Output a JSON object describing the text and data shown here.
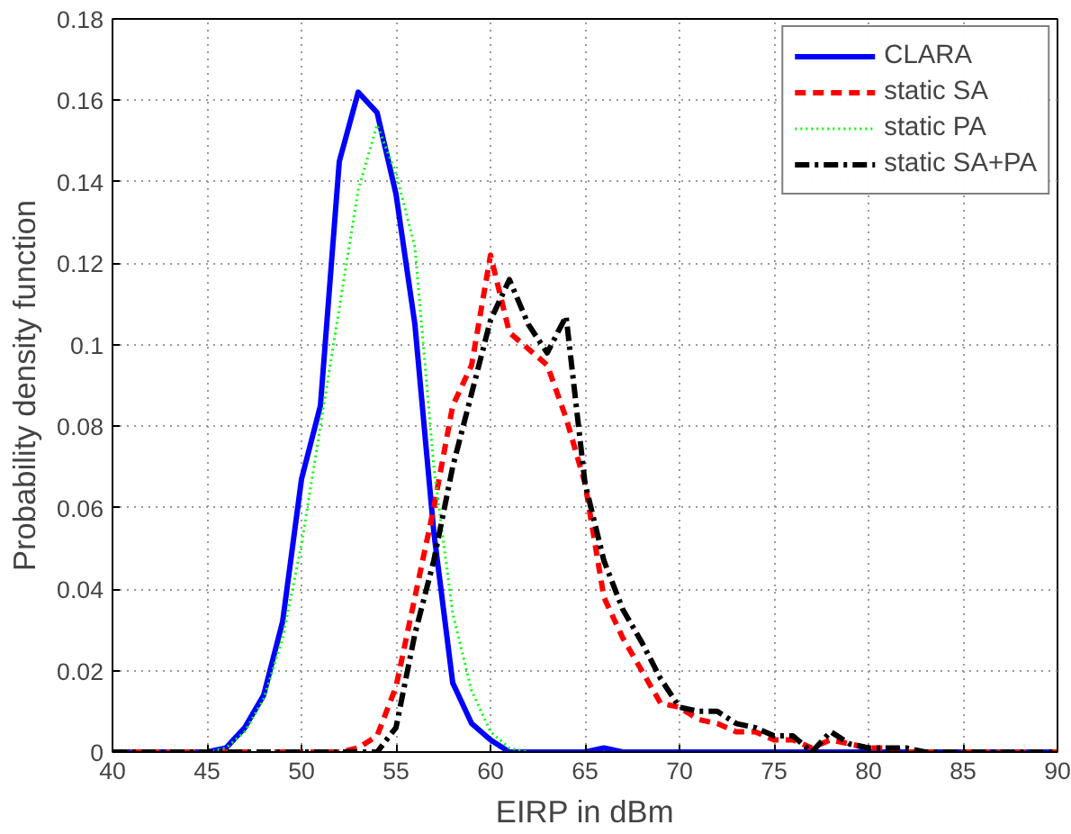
{
  "chart_data": {
    "type": "line",
    "xlabel": "EIRP in dBm",
    "ylabel": "Probability density function",
    "x": [
      40,
      41,
      42,
      43,
      44,
      45,
      46,
      47,
      48,
      49,
      50,
      51,
      52,
      53,
      54,
      55,
      56,
      57,
      58,
      59,
      60,
      61,
      62,
      63,
      64,
      65,
      66,
      67,
      68,
      69,
      70,
      71,
      72,
      73,
      74,
      75,
      76,
      77,
      78,
      79,
      80,
      81,
      82,
      83,
      84,
      85,
      86,
      87,
      88,
      89,
      90
    ],
    "series": [
      {
        "name": "CLARA",
        "color": "#0000ff",
        "line_style": "solid",
        "values": [
          0,
          0,
          0,
          0,
          0,
          0,
          0.001,
          0.006,
          0.014,
          0.032,
          0.067,
          0.085,
          0.145,
          0.162,
          0.157,
          0.137,
          0.105,
          0.054,
          0.017,
          0.007,
          0.003,
          0,
          0,
          0,
          0,
          0,
          0.001,
          0,
          0,
          0,
          0,
          0,
          0,
          0,
          0,
          0,
          0,
          0,
          0,
          0,
          0,
          0,
          0,
          0,
          0,
          0,
          0,
          0,
          0,
          0,
          0
        ]
      },
      {
        "name": "static SA",
        "color": "#ff0000",
        "line_style": "dashed",
        "values": [
          0,
          0,
          0,
          0,
          0,
          0,
          0,
          0,
          0,
          0,
          0,
          0,
          0,
          0.001,
          0.004,
          0.016,
          0.038,
          0.06,
          0.085,
          0.095,
          0.122,
          0.103,
          0.099,
          0.095,
          0.082,
          0.066,
          0.038,
          0.028,
          0.02,
          0.012,
          0.011,
          0.008,
          0.007,
          0.005,
          0.005,
          0.003,
          0.003,
          0.001,
          0.003,
          0.002,
          0.001,
          0.001,
          0,
          0,
          0,
          0,
          0,
          0,
          0,
          0,
          0
        ]
      },
      {
        "name": "static PA",
        "color": "#00ff00",
        "line_style": "dotted",
        "values": [
          null,
          null,
          null,
          null,
          null,
          0,
          0.001,
          0.005,
          0.013,
          0.028,
          0.051,
          0.08,
          0.109,
          0.138,
          0.154,
          0.142,
          0.124,
          0.07,
          0.034,
          0.015,
          0.005,
          0.001,
          0,
          null,
          null,
          null,
          null,
          null,
          null,
          null,
          null,
          null,
          null,
          null,
          null,
          null,
          null,
          null,
          null,
          null,
          null,
          null,
          null,
          null,
          null,
          null,
          null,
          null,
          null,
          null,
          null
        ]
      },
      {
        "name": "static SA+PA",
        "color": "#000000",
        "line_style": "dashdot",
        "values": [
          0,
          0,
          0,
          0,
          0,
          0,
          0,
          0,
          0,
          0,
          0,
          0,
          0,
          0,
          0,
          0.006,
          0.029,
          0.047,
          0.07,
          0.088,
          0.106,
          0.116,
          0.105,
          0.098,
          0.107,
          0.066,
          0.047,
          0.035,
          0.027,
          0.018,
          0.011,
          0.01,
          0.01,
          0.007,
          0.006,
          0.004,
          0.004,
          0,
          0.005,
          0.002,
          0.001,
          0.001,
          0.001,
          0,
          0,
          0,
          0,
          0,
          0,
          0,
          0
        ]
      }
    ],
    "xlim": [
      40,
      90
    ],
    "ylim": [
      0,
      0.18
    ],
    "xticks": [
      40,
      45,
      50,
      55,
      60,
      65,
      70,
      75,
      80,
      85,
      90
    ],
    "yticks": [
      0,
      0.02,
      0.04,
      0.06,
      0.08,
      {
        "value": 0.1,
        "label": "0.1"
      },
      0.12,
      0.14,
      0.16,
      0.18
    ],
    "grid": true,
    "legend": "top right"
  }
}
